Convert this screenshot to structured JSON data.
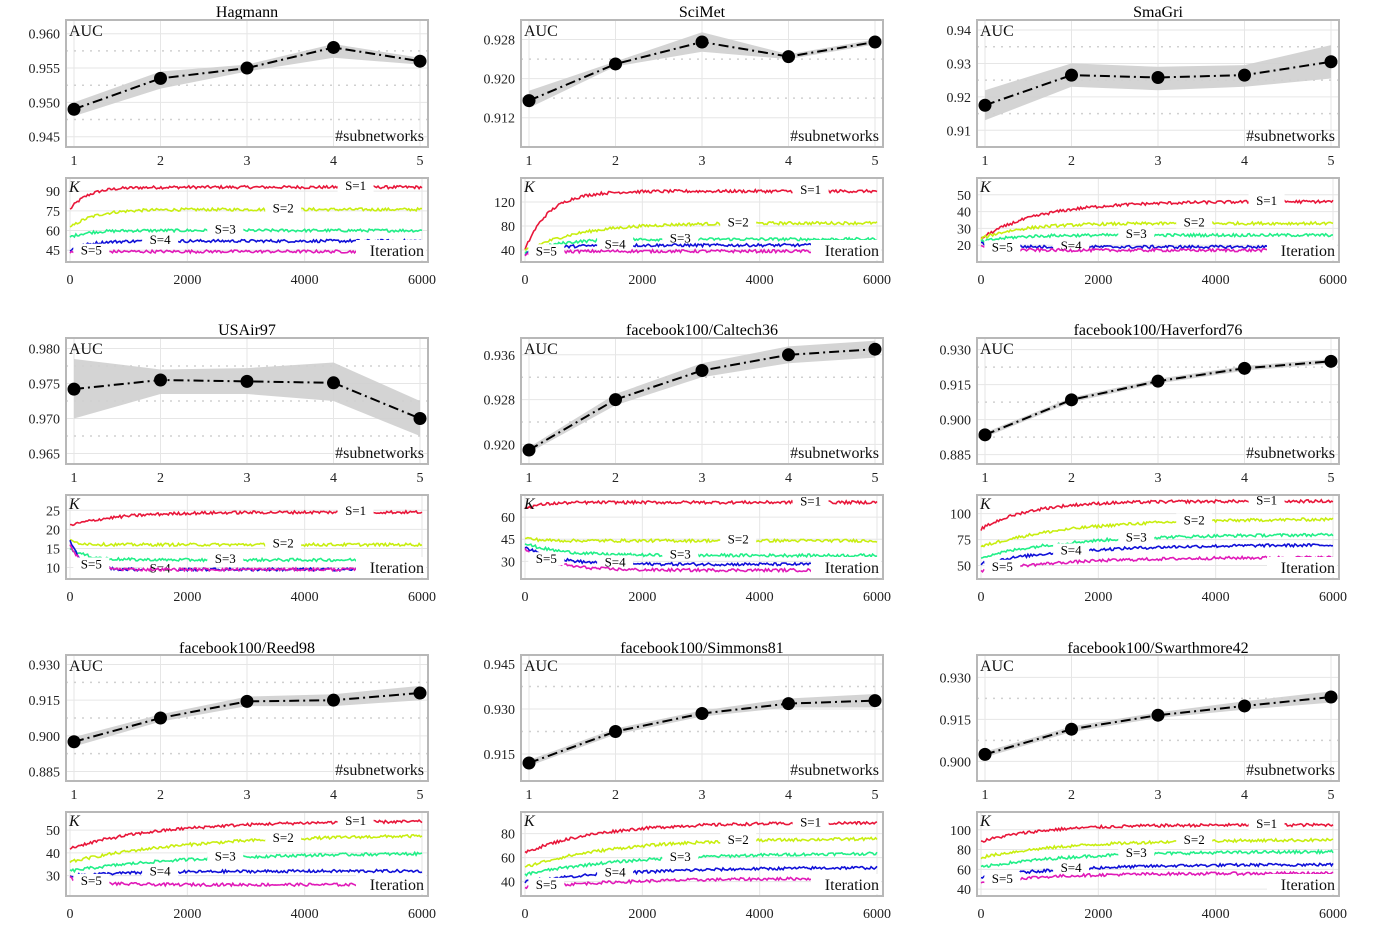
{
  "chart_data": [
    {
      "title": "Hagmann",
      "auc": {
        "type": "line",
        "label": "AUC",
        "xlabel": "#subnetworks",
        "x": [
          1,
          2,
          3,
          4,
          5
        ],
        "values": [
          0.949,
          0.9535,
          0.955,
          0.958,
          0.956
        ],
        "band_low": [
          0.948,
          0.952,
          0.9545,
          0.9565,
          0.9555
        ],
        "band_high": [
          0.95,
          0.9545,
          0.9555,
          0.9585,
          0.9565
        ],
        "ylim": [
          0.9435,
          0.962
        ],
        "yticks": [
          "0.945",
          "0.950",
          "0.955",
          "0.960"
        ],
        "yticks_v": [
          0.945,
          0.95,
          0.955,
          0.96
        ]
      },
      "k": {
        "type": "line",
        "label": "K",
        "xlabel": "Iteration",
        "x_ticks": [
          "0",
          "2000",
          "4000",
          "6000"
        ],
        "ylim": [
          36,
          100
        ],
        "yticks": [
          "45",
          "60",
          "75",
          "90"
        ],
        "yticks_v": [
          45,
          60,
          75,
          90
        ],
        "series": [
          {
            "name": "S=1",
            "color": "#e8173a",
            "start": 76,
            "end": 93,
            "rise": 300
          },
          {
            "name": "S=2",
            "color": "#c8ee10",
            "start": 62,
            "end": 76,
            "rise": 400
          },
          {
            "name": "S=3",
            "color": "#22ef88",
            "start": 55,
            "end": 60,
            "rise": 300
          },
          {
            "name": "S=4",
            "color": "#1010d8",
            "start": 45,
            "end": 52,
            "rise": 300
          },
          {
            "name": "S=5",
            "color": "#e01ab8",
            "start": 43,
            "end": 44,
            "rise": 200
          }
        ]
      }
    },
    {
      "title": "SciMet",
      "auc": {
        "type": "line",
        "label": "AUC",
        "xlabel": "#subnetworks",
        "x": [
          1,
          2,
          3,
          4,
          5
        ],
        "values": [
          0.9155,
          0.923,
          0.9275,
          0.9245,
          0.9275
        ],
        "band_low": [
          0.914,
          0.9225,
          0.9255,
          0.924,
          0.927
        ],
        "band_high": [
          0.9175,
          0.9235,
          0.9295,
          0.925,
          0.928
        ],
        "ylim": [
          0.906,
          0.932
        ],
        "yticks": [
          "0.912",
          "0.920",
          "0.928"
        ],
        "yticks_v": [
          0.912,
          0.92,
          0.928
        ]
      },
      "k": {
        "type": "line",
        "label": "K",
        "xlabel": "Iteration",
        "x_ticks": [
          "0",
          "2000",
          "4000",
          "6000"
        ],
        "ylim": [
          20,
          160
        ],
        "yticks": [
          "40",
          "80",
          "120"
        ],
        "yticks_v": [
          40,
          80,
          120
        ],
        "series": [
          {
            "name": "S=1",
            "color": "#e8173a",
            "start": 40,
            "end": 138,
            "rise": 400
          },
          {
            "name": "S=2",
            "color": "#c8ee10",
            "start": 38,
            "end": 85,
            "rise": 900
          },
          {
            "name": "S=3",
            "color": "#22ef88",
            "start": 34,
            "end": 58,
            "rise": 500
          },
          {
            "name": "S=4",
            "color": "#1010d8",
            "start": 33,
            "end": 48,
            "rise": 400
          },
          {
            "name": "S=5",
            "color": "#e01ab8",
            "start": 32,
            "end": 38,
            "rise": 300
          }
        ]
      }
    },
    {
      "title": "SmaGri",
      "auc": {
        "type": "line",
        "label": "AUC",
        "xlabel": "#subnetworks",
        "x": [
          1,
          2,
          3,
          4,
          5
        ],
        "values": [
          0.9175,
          0.9265,
          0.9258,
          0.9265,
          0.9305
        ],
        "band_low": [
          0.913,
          0.923,
          0.922,
          0.923,
          0.9255
        ],
        "band_high": [
          0.922,
          0.93,
          0.929,
          0.9295,
          0.9355
        ],
        "ylim": [
          0.905,
          0.943
        ],
        "yticks": [
          "0.91",
          "0.92",
          "0.93",
          "0.94"
        ],
        "yticks_v": [
          0.91,
          0.92,
          0.93,
          0.94
        ]
      },
      "k": {
        "type": "line",
        "label": "K",
        "xlabel": "Iteration",
        "x_ticks": [
          "0",
          "2000",
          "4000",
          "6000"
        ],
        "ylim": [
          10,
          60
        ],
        "yticks": [
          "20",
          "30",
          "40",
          "50"
        ],
        "yticks_v": [
          20,
          30,
          40,
          50
        ],
        "series": [
          {
            "name": "S=1",
            "color": "#e8173a",
            "start": 24,
            "end": 46,
            "rise": 1000
          },
          {
            "name": "S=2",
            "color": "#c8ee10",
            "start": 24,
            "end": 33,
            "rise": 700
          },
          {
            "name": "S=3",
            "color": "#22ef88",
            "start": 22,
            "end": 26,
            "rise": 500
          },
          {
            "name": "S=4",
            "color": "#1010d8",
            "start": 21,
            "end": 19,
            "rise": 300
          },
          {
            "name": "S=5",
            "color": "#e01ab8",
            "start": 20,
            "end": 17,
            "rise": 300
          }
        ]
      }
    },
    {
      "title": "USAir97",
      "auc": {
        "type": "line",
        "label": "AUC",
        "xlabel": "#subnetworks",
        "x": [
          1,
          2,
          3,
          4,
          5
        ],
        "values": [
          0.9742,
          0.9755,
          0.9753,
          0.9751,
          0.97
        ],
        "band_low": [
          0.97,
          0.9735,
          0.9735,
          0.9725,
          0.9675
        ],
        "band_high": [
          0.9785,
          0.977,
          0.9772,
          0.978,
          0.9725
        ],
        "ylim": [
          0.9635,
          0.9815
        ],
        "yticks": [
          "0.965",
          "0.970",
          "0.975",
          "0.980"
        ],
        "yticks_v": [
          0.965,
          0.97,
          0.975,
          0.98
        ]
      },
      "k": {
        "type": "line",
        "label": "K",
        "xlabel": "Iteration",
        "x_ticks": [
          "0",
          "2000",
          "4000",
          "6000"
        ],
        "ylim": [
          7,
          29
        ],
        "yticks": [
          "10",
          "15",
          "20",
          "25"
        ],
        "yticks_v": [
          10,
          15,
          20,
          25
        ],
        "series": [
          {
            "name": "S=1",
            "color": "#e8173a",
            "start": 21,
            "end": 24.5,
            "rise": 800
          },
          {
            "name": "S=2",
            "color": "#c8ee10",
            "start": 17,
            "end": 16,
            "rise": 200
          },
          {
            "name": "S=3",
            "color": "#22ef88",
            "start": 15,
            "end": 12,
            "rise": 300
          },
          {
            "name": "S=4",
            "color": "#1010d8",
            "start": 17,
            "end": 9.5,
            "rise": 200
          },
          {
            "name": "S=5",
            "color": "#e01ab8",
            "start": 16,
            "end": 9.5,
            "rise": 200
          }
        ]
      }
    },
    {
      "title": "facebook100/Caltech36",
      "auc": {
        "type": "line",
        "label": "AUC",
        "xlabel": "#subnetworks",
        "x": [
          1,
          2,
          3,
          4,
          5
        ],
        "values": [
          0.919,
          0.928,
          0.9332,
          0.936,
          0.937
        ],
        "band_low": [
          0.9185,
          0.927,
          0.932,
          0.9345,
          0.9355
        ],
        "band_high": [
          0.9195,
          0.929,
          0.9345,
          0.9375,
          0.9385
        ],
        "ylim": [
          0.9165,
          0.939
        ],
        "yticks": [
          "0.920",
          "0.928",
          "0.936"
        ],
        "yticks_v": [
          0.92,
          0.928,
          0.936
        ]
      },
      "k": {
        "type": "line",
        "label": "K",
        "xlabel": "Iteration",
        "x_ticks": [
          "0",
          "2000",
          "4000",
          "6000"
        ],
        "ylim": [
          18,
          75
        ],
        "yticks": [
          "30",
          "45",
          "60"
        ],
        "yticks_v": [
          30,
          45,
          60
        ],
        "series": [
          {
            "name": "S=1",
            "color": "#e8173a",
            "start": 66,
            "end": 70,
            "rise": 300
          },
          {
            "name": "S=2",
            "color": "#c8ee10",
            "start": 46,
            "end": 44,
            "rise": 200
          },
          {
            "name": "S=3",
            "color": "#22ef88",
            "start": 42,
            "end": 34,
            "rise": 600
          },
          {
            "name": "S=4",
            "color": "#1010d8",
            "start": 40,
            "end": 28,
            "rise": 500
          },
          {
            "name": "S=5",
            "color": "#e01ab8",
            "start": 38,
            "end": 24,
            "rise": 500
          }
        ]
      }
    },
    {
      "title": "facebook100/Haverford76",
      "auc": {
        "type": "line",
        "label": "AUC",
        "xlabel": "#subnetworks",
        "x": [
          1,
          2,
          3,
          4,
          5
        ],
        "values": [
          0.8935,
          0.9085,
          0.9165,
          0.922,
          0.925
        ],
        "band_low": [
          0.8925,
          0.9075,
          0.9155,
          0.921,
          0.924
        ],
        "band_high": [
          0.8945,
          0.9095,
          0.9175,
          0.923,
          0.926
        ],
        "ylim": [
          0.881,
          0.935
        ],
        "yticks": [
          "0.885",
          "0.900",
          "0.915",
          "0.930"
        ],
        "yticks_v": [
          0.885,
          0.9,
          0.915,
          0.93
        ]
      },
      "k": {
        "type": "line",
        "label": "K",
        "xlabel": "Iteration",
        "x_ticks": [
          "0",
          "2000",
          "4000",
          "6000"
        ],
        "ylim": [
          37,
          118
        ],
        "yticks": [
          "50",
          "75",
          "100"
        ],
        "yticks_v": [
          50,
          75,
          100
        ],
        "series": [
          {
            "name": "S=1",
            "color": "#e8173a",
            "start": 85,
            "end": 112,
            "rise": 800
          },
          {
            "name": "S=2",
            "color": "#c8ee10",
            "start": 68,
            "end": 95,
            "rise": 1500
          },
          {
            "name": "S=3",
            "color": "#22ef88",
            "start": 58,
            "end": 80,
            "rise": 1500
          },
          {
            "name": "S=4",
            "color": "#1010d8",
            "start": 52,
            "end": 70,
            "rise": 1500
          },
          {
            "name": "S=5",
            "color": "#e01ab8",
            "start": 45,
            "end": 58,
            "rise": 1500
          }
        ]
      }
    },
    {
      "title": "facebook100/Reed98",
      "auc": {
        "type": "line",
        "label": "AUC",
        "xlabel": "#subnetworks",
        "x": [
          1,
          2,
          3,
          4,
          5
        ],
        "values": [
          0.8975,
          0.9075,
          0.9145,
          0.915,
          0.918
        ],
        "band_low": [
          0.8955,
          0.906,
          0.9125,
          0.9125,
          0.915
        ],
        "band_high": [
          0.8995,
          0.909,
          0.9165,
          0.9175,
          0.921
        ],
        "ylim": [
          0.881,
          0.934
        ],
        "yticks": [
          "0.885",
          "0.900",
          "0.915",
          "0.930"
        ],
        "yticks_v": [
          0.885,
          0.9,
          0.915,
          0.93
        ]
      },
      "k": {
        "type": "line",
        "label": "K",
        "xlabel": "Iteration",
        "x_ticks": [
          "0",
          "2000",
          "4000",
          "6000"
        ],
        "ylim": [
          21,
          58
        ],
        "yticks": [
          "30",
          "40",
          "50"
        ],
        "yticks_v": [
          30,
          40,
          50
        ],
        "series": [
          {
            "name": "S=1",
            "color": "#e8173a",
            "start": 42,
            "end": 54,
            "rise": 1500
          },
          {
            "name": "S=2",
            "color": "#c8ee10",
            "start": 36,
            "end": 48,
            "rise": 2000
          },
          {
            "name": "S=3",
            "color": "#22ef88",
            "start": 32,
            "end": 40,
            "rise": 2000
          },
          {
            "name": "S=4",
            "color": "#1010d8",
            "start": 30,
            "end": 32,
            "rise": 1200
          },
          {
            "name": "S=5",
            "color": "#e01ab8",
            "start": 29,
            "end": 26,
            "rise": 400
          }
        ]
      }
    },
    {
      "title": "facebook100/Simmons81",
      "auc": {
        "type": "line",
        "label": "AUC",
        "xlabel": "#subnetworks",
        "x": [
          1,
          2,
          3,
          4,
          5
        ],
        "values": [
          0.912,
          0.9225,
          0.9285,
          0.9318,
          0.9328
        ],
        "band_low": [
          0.911,
          0.9215,
          0.9275,
          0.9305,
          0.9305
        ],
        "band_high": [
          0.913,
          0.9235,
          0.9295,
          0.9335,
          0.935
        ],
        "ylim": [
          0.906,
          0.948
        ],
        "yticks": [
          "0.915",
          "0.930",
          "0.945"
        ],
        "yticks_v": [
          0.915,
          0.93,
          0.945
        ]
      },
      "k": {
        "type": "line",
        "label": "K",
        "xlabel": "Iteration",
        "x_ticks": [
          "0",
          "2000",
          "4000",
          "6000"
        ],
        "ylim": [
          28,
          98
        ],
        "yticks": [
          "40",
          "60",
          "80"
        ],
        "yticks_v": [
          40,
          60,
          80
        ],
        "series": [
          {
            "name": "S=1",
            "color": "#e8173a",
            "start": 64,
            "end": 89,
            "rise": 1200
          },
          {
            "name": "S=2",
            "color": "#c8ee10",
            "start": 52,
            "end": 76,
            "rise": 1500
          },
          {
            "name": "S=3",
            "color": "#22ef88",
            "start": 46,
            "end": 64,
            "rise": 1800
          },
          {
            "name": "S=4",
            "color": "#1010d8",
            "start": 40,
            "end": 52,
            "rise": 1800
          },
          {
            "name": "S=5",
            "color": "#e01ab8",
            "start": 35,
            "end": 43,
            "rise": 1800
          }
        ]
      }
    },
    {
      "title": "facebook100/Swarthmore42",
      "auc": {
        "type": "line",
        "label": "AUC",
        "xlabel": "#subnetworks",
        "x": [
          1,
          2,
          3,
          4,
          5
        ],
        "values": [
          0.9025,
          0.9115,
          0.9165,
          0.9198,
          0.923
        ],
        "band_low": [
          0.9015,
          0.9105,
          0.9155,
          0.9185,
          0.921
        ],
        "band_high": [
          0.9035,
          0.9125,
          0.9175,
          0.9215,
          0.925
        ],
        "ylim": [
          0.893,
          0.938
        ],
        "yticks": [
          "0.900",
          "0.915",
          "0.930"
        ],
        "yticks_v": [
          0.9,
          0.915,
          0.93
        ]
      },
      "k": {
        "type": "line",
        "label": "K",
        "xlabel": "Iteration",
        "x_ticks": [
          "0",
          "2000",
          "4000",
          "6000"
        ],
        "ylim": [
          33,
          118
        ],
        "yticks": [
          "40",
          "60",
          "80",
          "100"
        ],
        "yticks_v": [
          40,
          60,
          80,
          100
        ],
        "series": [
          {
            "name": "S=1",
            "color": "#e8173a",
            "start": 88,
            "end": 105,
            "rise": 1000
          },
          {
            "name": "S=2",
            "color": "#c8ee10",
            "start": 72,
            "end": 90,
            "rise": 1500
          },
          {
            "name": "S=3",
            "color": "#22ef88",
            "start": 62,
            "end": 78,
            "rise": 1500
          },
          {
            "name": "S=4",
            "color": "#1010d8",
            "start": 52,
            "end": 65,
            "rise": 1500
          },
          {
            "name": "S=5",
            "color": "#e01ab8",
            "start": 47,
            "end": 56,
            "rise": 1200
          }
        ]
      }
    }
  ]
}
